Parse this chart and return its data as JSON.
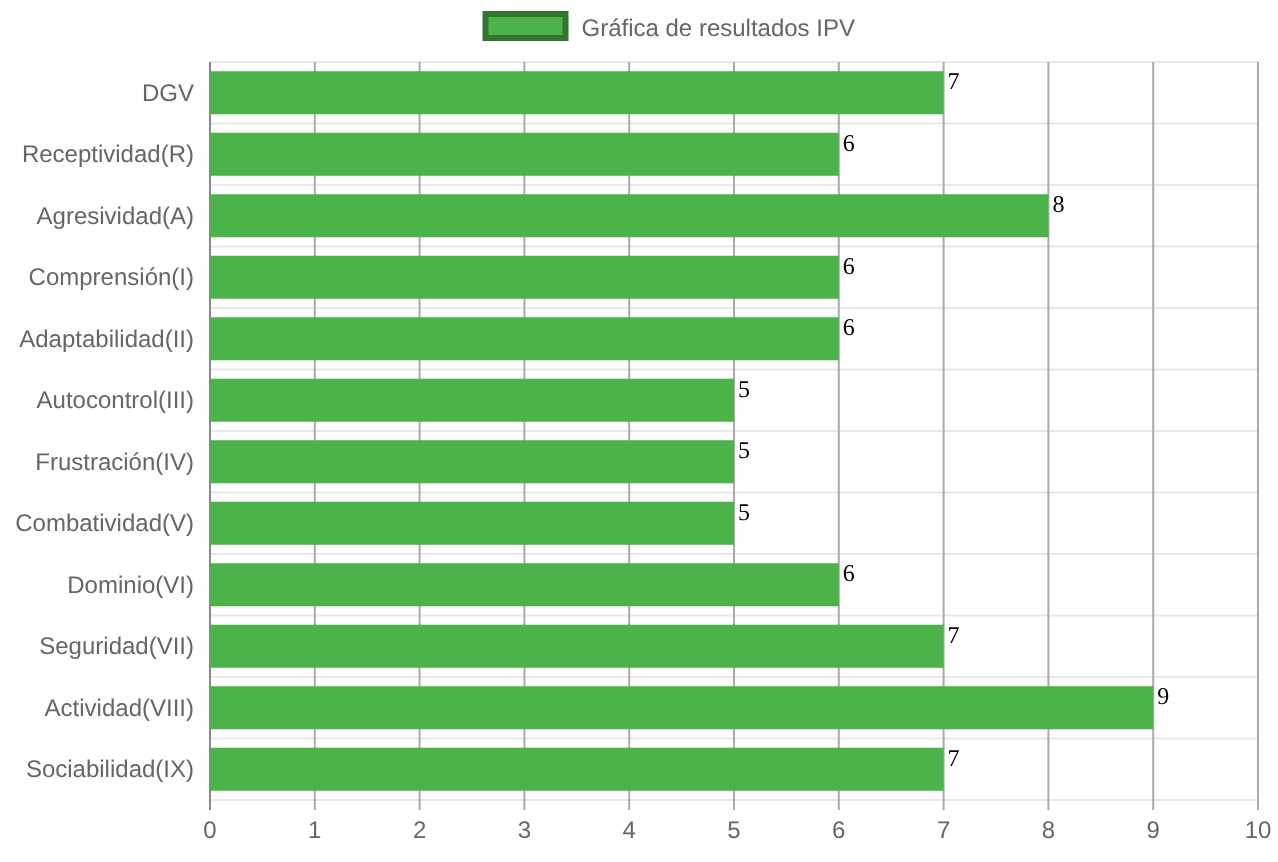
{
  "chart_data": {
    "type": "bar",
    "orientation": "horizontal",
    "categories": [
      "DGV",
      "Receptividad(R)",
      "Agresividad(A)",
      "Comprensión(I)",
      "Adaptabilidad(II)",
      "Autocontrol(III)",
      "Frustración(IV)",
      "Combatividad(V)",
      "Dominio(VI)",
      "Seguridad(VII)",
      "Actividad(VIII)",
      "Sociabilidad(IX)"
    ],
    "series": [
      {
        "name": "Gráfica de resultados IPV",
        "color": "#4cb34a",
        "values": [
          7,
          6,
          8,
          6,
          6,
          5,
          5,
          5,
          6,
          7,
          9,
          7
        ]
      }
    ],
    "xlim": [
      0,
      10
    ],
    "xticks": [
      0,
      1,
      2,
      3,
      4,
      5,
      6,
      7,
      8,
      9,
      10
    ],
    "grid": true,
    "legend": "top",
    "data_labels": true
  }
}
